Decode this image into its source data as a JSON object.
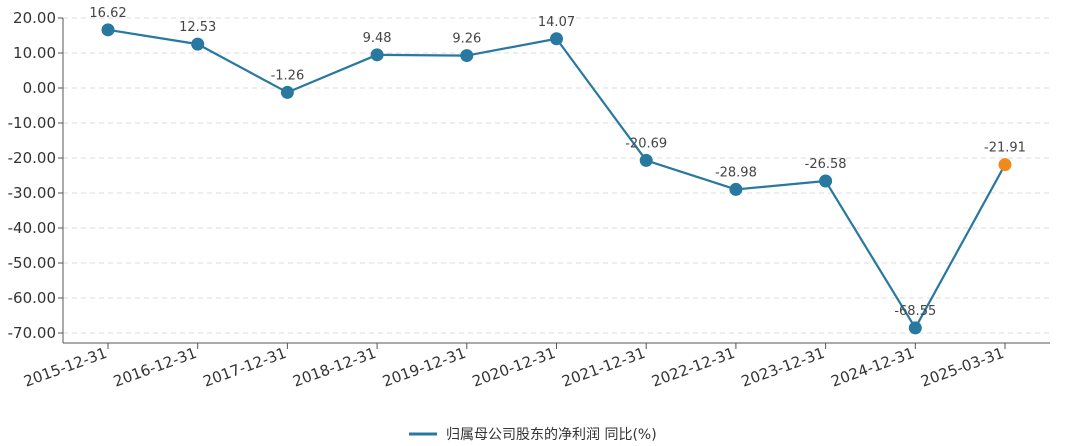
{
  "chart_data": {
    "type": "line",
    "categories": [
      "2015-12-31",
      "2016-12-31",
      "2017-12-31",
      "2018-12-31",
      "2019-12-31",
      "2020-12-31",
      "2021-12-31",
      "2022-12-31",
      "2023-12-31",
      "2024-12-31",
      "2025-03-31"
    ],
    "series": [
      {
        "name": "归属母公司股东的净利润 同比(%)",
        "values": [
          16.62,
          12.53,
          -1.26,
          9.48,
          9.26,
          14.07,
          -20.69,
          -28.98,
          -26.58,
          -68.55,
          -21.91
        ],
        "value_labels": [
          "16.62",
          "12.53",
          "-1.26",
          "9.48",
          "9.26",
          "14.07",
          "-20.69",
          "-28.98",
          "-26.58",
          "-68.55",
          "-21.91"
        ],
        "color": "#2878a0",
        "highlight_color": "#f08a1c"
      }
    ],
    "y_ticks": [
      20,
      10,
      0,
      -10,
      -20,
      -30,
      -40,
      -50,
      -60,
      -70
    ],
    "y_tick_labels": [
      "20.00",
      "10.00",
      "0.00",
      "-10.00",
      "-20.00",
      "-30.00",
      "-40.00",
      "-50.00",
      "-60.00",
      "-70.00"
    ],
    "ylim": [
      -73,
      20
    ],
    "grid": true,
    "legend_position": "bottom-center"
  }
}
